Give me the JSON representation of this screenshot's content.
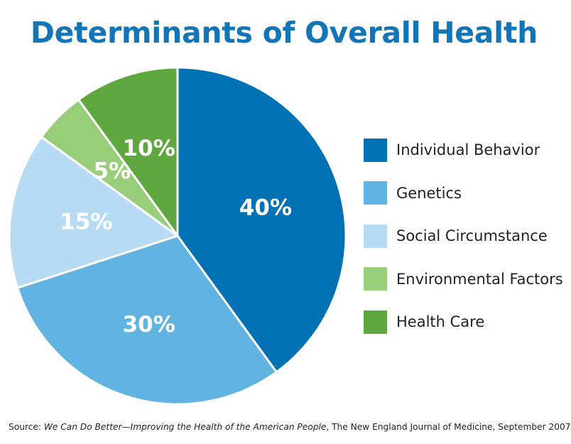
{
  "chart_data": {
    "type": "pie",
    "title": "Determinants of Overall Health",
    "categories": [
      "Individual Behavior",
      "Genetics",
      "Social Circumstance",
      "Environmental Factors",
      "Health Care"
    ],
    "values": [
      40,
      30,
      15,
      5,
      10
    ],
    "labels": [
      "40%",
      "30%",
      "15%",
      "5%",
      "10%"
    ],
    "colors": [
      "#0071b3",
      "#61b3e2",
      "#b7dbf3",
      "#98cd7a",
      "#5fa83f"
    ],
    "legend_position": "right",
    "start_angle_deg": 0,
    "direction": "clockwise"
  },
  "source": {
    "prefix": "Source: ",
    "title": "We Can Do Better—Improving the Health of the American People",
    "suffix": ", The New England Journal of Medicine, September 2007"
  }
}
